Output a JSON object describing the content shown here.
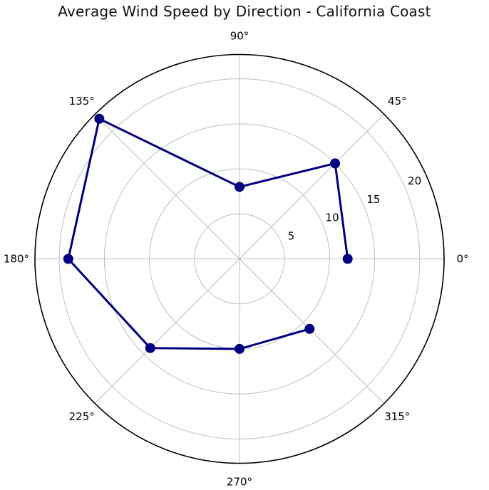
{
  "page": {
    "background": "#ffffff"
  },
  "chart_data": {
    "type": "line",
    "projection": "polar",
    "title": "Average Wind Speed by Direction - California Coast",
    "angles_deg": [
      0,
      45,
      90,
      135,
      180,
      225,
      270,
      315
    ],
    "angle_labels": [
      "0°",
      "45°",
      "90°",
      "135°",
      "180°",
      "225°",
      "270°",
      "315°"
    ],
    "series": [
      {
        "name": "average-wind-speed",
        "values": [
          12,
          15,
          8,
          22,
          19,
          14,
          10,
          11
        ],
        "color": "#000080",
        "marker": "circle",
        "closed": false
      }
    ],
    "radial_ticks": [
      5,
      10,
      15,
      20
    ],
    "radial_tick_labels": [
      "5",
      "10",
      "15",
      "20"
    ],
    "rlim": [
      0,
      22.7
    ],
    "rlabel_angle_deg": 24,
    "grid": true,
    "grid_color": "#bfbfbf",
    "outline_color": "#000000",
    "text_color": "#000000",
    "legend": "none"
  }
}
